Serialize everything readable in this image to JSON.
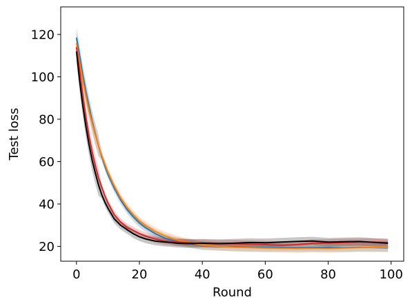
{
  "chart_data": {
    "type": "line",
    "title": "",
    "xlabel": "Round",
    "ylabel": "Test loss",
    "xlim": [
      -5,
      104
    ],
    "ylim": [
      13,
      133
    ],
    "xticks": [
      0,
      20,
      40,
      60,
      80,
      100
    ],
    "yticks": [
      20,
      40,
      60,
      80,
      100,
      120
    ],
    "grid": false,
    "legend": "none",
    "x": [
      0,
      1,
      2,
      3,
      4,
      5,
      6,
      7,
      8,
      9,
      10,
      12,
      14,
      16,
      18,
      20,
      22,
      25,
      28,
      30,
      32,
      35,
      38,
      40,
      45,
      50,
      55,
      60,
      65,
      70,
      75,
      80,
      85,
      90,
      95,
      99
    ],
    "series": [
      {
        "color": "#1f77b4",
        "band": 2.0,
        "values": [
          118.5,
          110,
          101,
          93,
          86,
          79,
          73,
          67.5,
          62.5,
          58,
          54,
          47.5,
          42,
          37.5,
          34,
          31,
          28.8,
          26,
          24,
          23,
          22.3,
          21.5,
          20.8,
          20.3,
          20,
          19.8,
          19.6,
          19.5,
          19.5,
          19.4,
          19.5,
          19.5,
          19.4,
          19.6,
          19.4,
          19.3
        ]
      },
      {
        "color": "#ff7f0e",
        "band": 2.0,
        "values": [
          116,
          107,
          98.5,
          91,
          84,
          78,
          72.5,
          67.5,
          63,
          59,
          55,
          48.5,
          43,
          38.5,
          35,
          32,
          29.8,
          27,
          25,
          24,
          23,
          22,
          21,
          20.5,
          20,
          19.6,
          19.4,
          19.2,
          19.1,
          19,
          19.1,
          19,
          19.2,
          19.4,
          19.5,
          19.5
        ]
      },
      {
        "color": "#d62728",
        "band": 1.8,
        "values": [
          114,
          103,
          91.5,
          81,
          72,
          64.5,
          58,
          52.5,
          48,
          44,
          40.5,
          35,
          31.5,
          29,
          27.5,
          26,
          24.8,
          23.5,
          22.5,
          22.2,
          22,
          21.8,
          21.5,
          21.5,
          21.2,
          21.3,
          21,
          20.8,
          20.5,
          20.8,
          21.5,
          21.6,
          21.8,
          22,
          22,
          21.8
        ]
      },
      {
        "color": "#000000",
        "band": 2.0,
        "values": [
          112,
          98,
          86.5,
          76.5,
          68,
          60.5,
          54.5,
          49,
          44.5,
          41,
          38,
          33,
          30,
          28,
          26,
          24.5,
          23.5,
          22.5,
          22,
          21.8,
          21.5,
          21.3,
          21.4,
          21.5,
          21.3,
          21.5,
          21.8,
          21.7,
          22,
          22.3,
          22.5,
          22,
          22.2,
          22.3,
          21.8,
          21.5
        ]
      }
    ]
  }
}
